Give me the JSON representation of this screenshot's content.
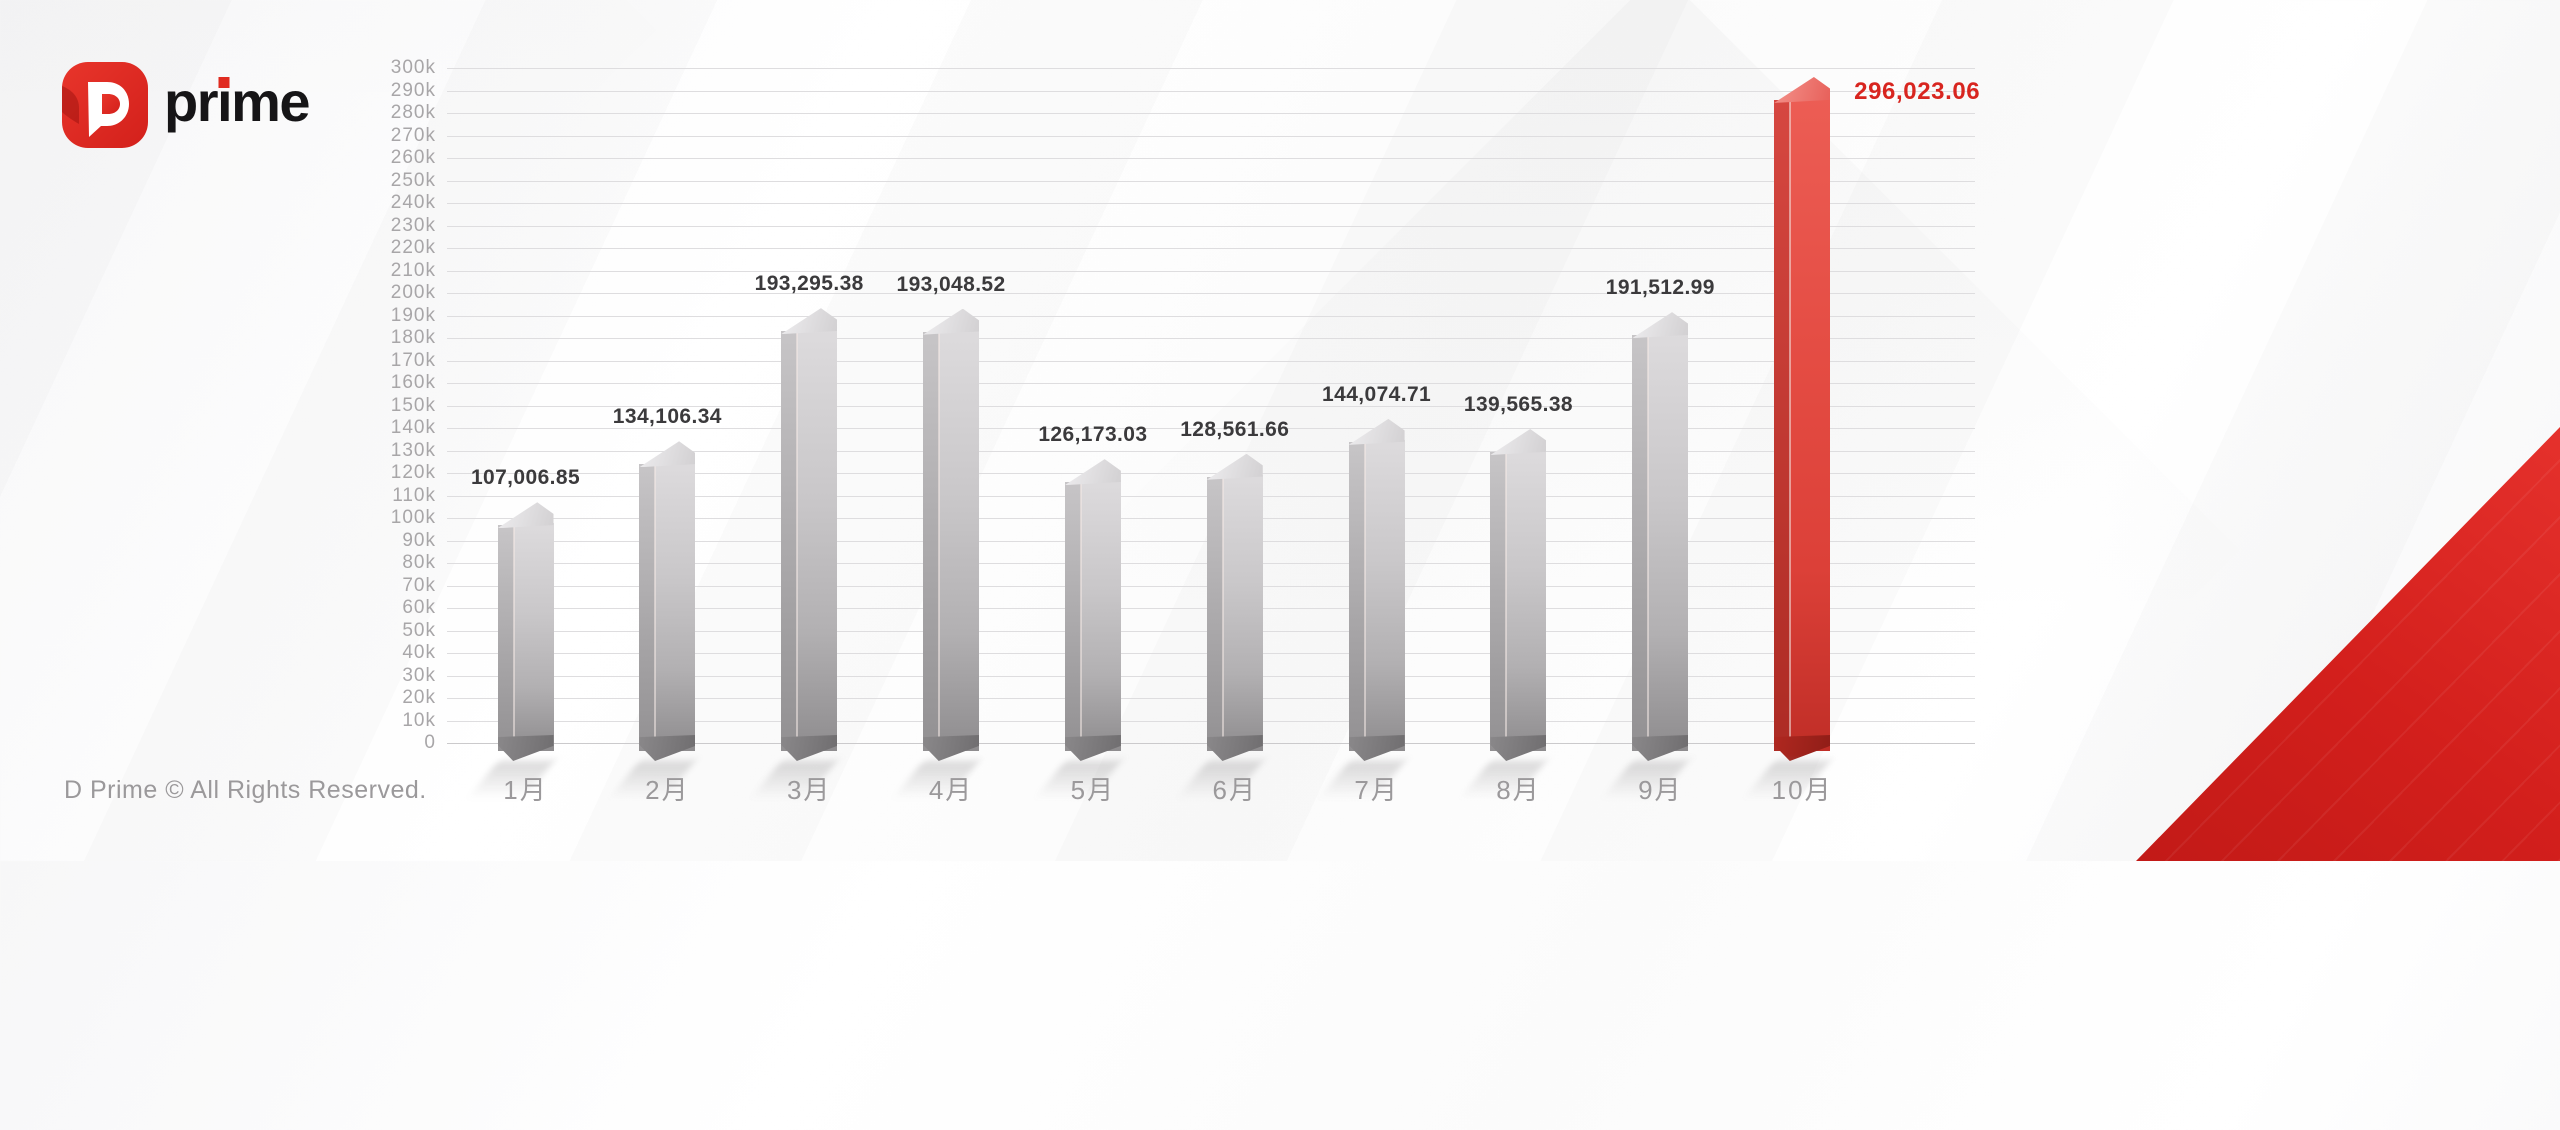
{
  "brand": {
    "logo_mark": "D",
    "logo_text": "prime",
    "logo_text_pre": "pr",
    "logo_text_post": "me",
    "accent": "#e02b20",
    "text_color": "#161517"
  },
  "footer": {
    "copyright": "D Prime © All Rights Reserved.",
    "color": "#9b999b"
  },
  "decor": {
    "corner_color": "#d31f1c"
  },
  "chart_data": {
    "type": "bar",
    "title": "",
    "xlabel": "",
    "ylabel": "",
    "categories": [
      "1月",
      "2月",
      "3月",
      "4月",
      "5月",
      "6月",
      "7月",
      "8月",
      "9月",
      "10月"
    ],
    "values": [
      107006.85,
      134106.34,
      193295.38,
      193048.52,
      126173.03,
      128561.66,
      144074.71,
      139565.38,
      191512.99,
      296023.06
    ],
    "value_labels": [
      "107,006.85",
      "134,106.34",
      "193,295.38",
      "193,048.52",
      "126,173.03",
      "128,561.66",
      "144,074.71",
      "139,565.38",
      "191,512.99",
      "296,023.06"
    ],
    "ytick_labels": [
      "0",
      "10k",
      "20k",
      "30k",
      "40k",
      "50k",
      "60k",
      "70k",
      "80k",
      "90k",
      "100k",
      "110k",
      "120k",
      "130k",
      "140k",
      "150k",
      "160k",
      "170k",
      "180k",
      "190k",
      "200k",
      "210k",
      "220k",
      "230k",
      "240k",
      "250k",
      "260k",
      "270k",
      "280k",
      "290k",
      "300k"
    ],
    "ytick_step": 10000,
    "ylim": [
      0,
      300000
    ],
    "grid": true,
    "legend": false,
    "highlight_index": 9,
    "bar_color": "#c9c7c9",
    "highlight_color": "#e2423a",
    "value_label_color": "#3b3a3c",
    "highlight_label_color": "#d8251f",
    "axis_label_color": "#a8a6a8",
    "category_label_color": "#9b999b"
  }
}
